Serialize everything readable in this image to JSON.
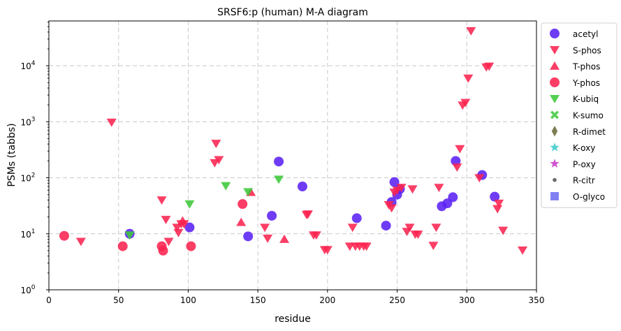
{
  "chart_data": {
    "type": "scatter",
    "title": "SRSF6:p (human) M-A diagram",
    "xlabel": "residue",
    "ylabel": "PSMs (tabbs)",
    "xlim": [
      0,
      350
    ],
    "ylim_log10": [
      0,
      4.8
    ],
    "y_scale": "log",
    "grid": true,
    "legend_placement": "outside-right",
    "x_ticks": [
      0,
      50,
      100,
      150,
      200,
      250,
      300,
      350
    ],
    "x_tick_labels": [
      "0",
      "50",
      "100",
      "150",
      "200",
      "250",
      "300",
      "350"
    ],
    "y_tick_exponents": [
      0,
      1,
      2,
      3,
      4
    ],
    "y_tick_base": "10",
    "series": [
      {
        "name": "acetyl",
        "marker": "circle",
        "color": "#5b21f5",
        "points": [
          [
            58,
            10
          ],
          [
            101,
            13
          ],
          [
            143,
            9
          ],
          [
            160,
            21
          ],
          [
            165,
            195
          ],
          [
            182,
            70
          ],
          [
            221,
            19
          ],
          [
            242,
            14
          ],
          [
            246,
            37
          ],
          [
            248,
            84
          ],
          [
            250,
            50
          ],
          [
            252,
            63
          ],
          [
            282,
            31
          ],
          [
            286,
            35
          ],
          [
            290,
            45
          ],
          [
            292,
            200
          ],
          [
            311,
            112
          ],
          [
            320,
            46
          ]
        ]
      },
      {
        "name": "S-phos",
        "marker": "triangle-down",
        "color": "#fa2350",
        "points": [
          [
            23,
            7.3
          ],
          [
            45,
            980
          ],
          [
            81,
            40
          ],
          [
            84,
            18
          ],
          [
            86,
            7.3
          ],
          [
            92,
            13
          ],
          [
            93,
            10.5
          ],
          [
            95,
            15
          ],
          [
            97,
            15
          ],
          [
            119,
            185
          ],
          [
            120,
            410
          ],
          [
            122,
            210
          ],
          [
            155,
            13
          ],
          [
            157,
            8.3
          ],
          [
            185,
            22
          ],
          [
            186,
            22.5
          ],
          [
            190,
            9.5
          ],
          [
            192,
            9.5
          ],
          [
            198,
            5.2
          ],
          [
            200,
            5.2
          ],
          [
            216,
            6
          ],
          [
            218,
            13
          ],
          [
            220,
            6
          ],
          [
            223,
            6
          ],
          [
            226,
            6
          ],
          [
            228,
            6
          ],
          [
            244,
            33
          ],
          [
            246,
            29
          ],
          [
            248,
            55
          ],
          [
            250,
            60
          ],
          [
            253,
            67
          ],
          [
            257,
            11
          ],
          [
            259,
            13
          ],
          [
            261,
            63
          ],
          [
            263,
            9.8
          ],
          [
            265,
            9.8
          ],
          [
            276,
            6.2
          ],
          [
            278,
            13
          ],
          [
            280,
            67
          ],
          [
            293,
            155
          ],
          [
            295,
            330
          ],
          [
            297,
            1980
          ],
          [
            299,
            2200
          ],
          [
            301,
            6000
          ],
          [
            303,
            42000
          ],
          [
            309,
            100
          ],
          [
            314,
            9500
          ],
          [
            316,
            9800
          ],
          [
            322,
            28
          ],
          [
            323,
            35
          ],
          [
            326,
            11.5
          ],
          [
            340,
            5.1
          ]
        ]
      },
      {
        "name": "T-phos",
        "marker": "triangle-up",
        "color": "#fa2350",
        "points": [
          [
            96,
            17
          ],
          [
            138,
            16
          ],
          [
            145,
            55
          ],
          [
            169,
            8
          ]
        ]
      },
      {
        "name": "Y-phos",
        "marker": "circle",
        "color": "#fa2350",
        "points": [
          [
            11,
            9.2
          ],
          [
            53,
            6
          ],
          [
            81,
            6
          ],
          [
            82,
            5
          ],
          [
            102,
            6
          ],
          [
            139,
            34
          ]
        ]
      },
      {
        "name": "K-ubiq",
        "marker": "triangle-down",
        "color": "#3ec83a",
        "points": [
          [
            58,
            9.5
          ],
          [
            101,
            34
          ],
          [
            127,
            72
          ],
          [
            143,
            56
          ],
          [
            165,
            94
          ]
        ]
      },
      {
        "name": "K-sumo",
        "marker": "x",
        "color": "#3ec83a",
        "points": []
      },
      {
        "name": "R-dimet",
        "marker": "diamond",
        "color": "#6b6b3a",
        "points": []
      },
      {
        "name": "K-oxy",
        "marker": "star",
        "color": "#3ecbcb",
        "points": []
      },
      {
        "name": "P-oxy",
        "marker": "star",
        "color": "#c840c8",
        "points": []
      },
      {
        "name": "R-citr",
        "marker": "dot",
        "color": "#555555",
        "points": []
      },
      {
        "name": "O-glyco",
        "marker": "square",
        "color": "#6e6ef0",
        "points": []
      }
    ]
  }
}
